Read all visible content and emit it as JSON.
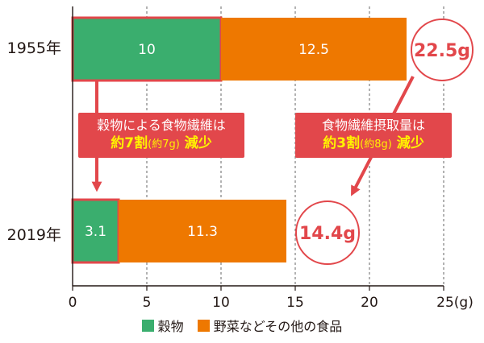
{
  "chart_data": {
    "type": "bar",
    "orientation": "horizontal",
    "stacked": true,
    "categories": [
      "1955年",
      "2019年"
    ],
    "series": [
      {
        "name": "穀物",
        "values": [
          10,
          3.1
        ],
        "color": "#3aae6e"
      },
      {
        "name": "野菜などその他の食品",
        "values": [
          12.5,
          11.3
        ],
        "color": "#ee7800"
      }
    ],
    "totals": [
      "22.5g",
      "14.4g"
    ],
    "xticks": [
      "0",
      "5",
      "10",
      "15",
      "20",
      "25(g)"
    ],
    "xlim": [
      0,
      25
    ],
    "grid": true,
    "legend_position": "bottom"
  },
  "notes": {
    "grain": {
      "line1": "穀物による食物繊維は",
      "line2_a": "約7割",
      "line2_paren": "(約7g)",
      "line2_b": "減少"
    },
    "total": {
      "line1": "食物繊維摂取量は",
      "line2_a": "約3割",
      "line2_paren": "(約8g)",
      "line2_b": "減少"
    }
  },
  "colors": {
    "accent": "#e2474b",
    "highlight": "#fff200",
    "grid": "#666666"
  }
}
